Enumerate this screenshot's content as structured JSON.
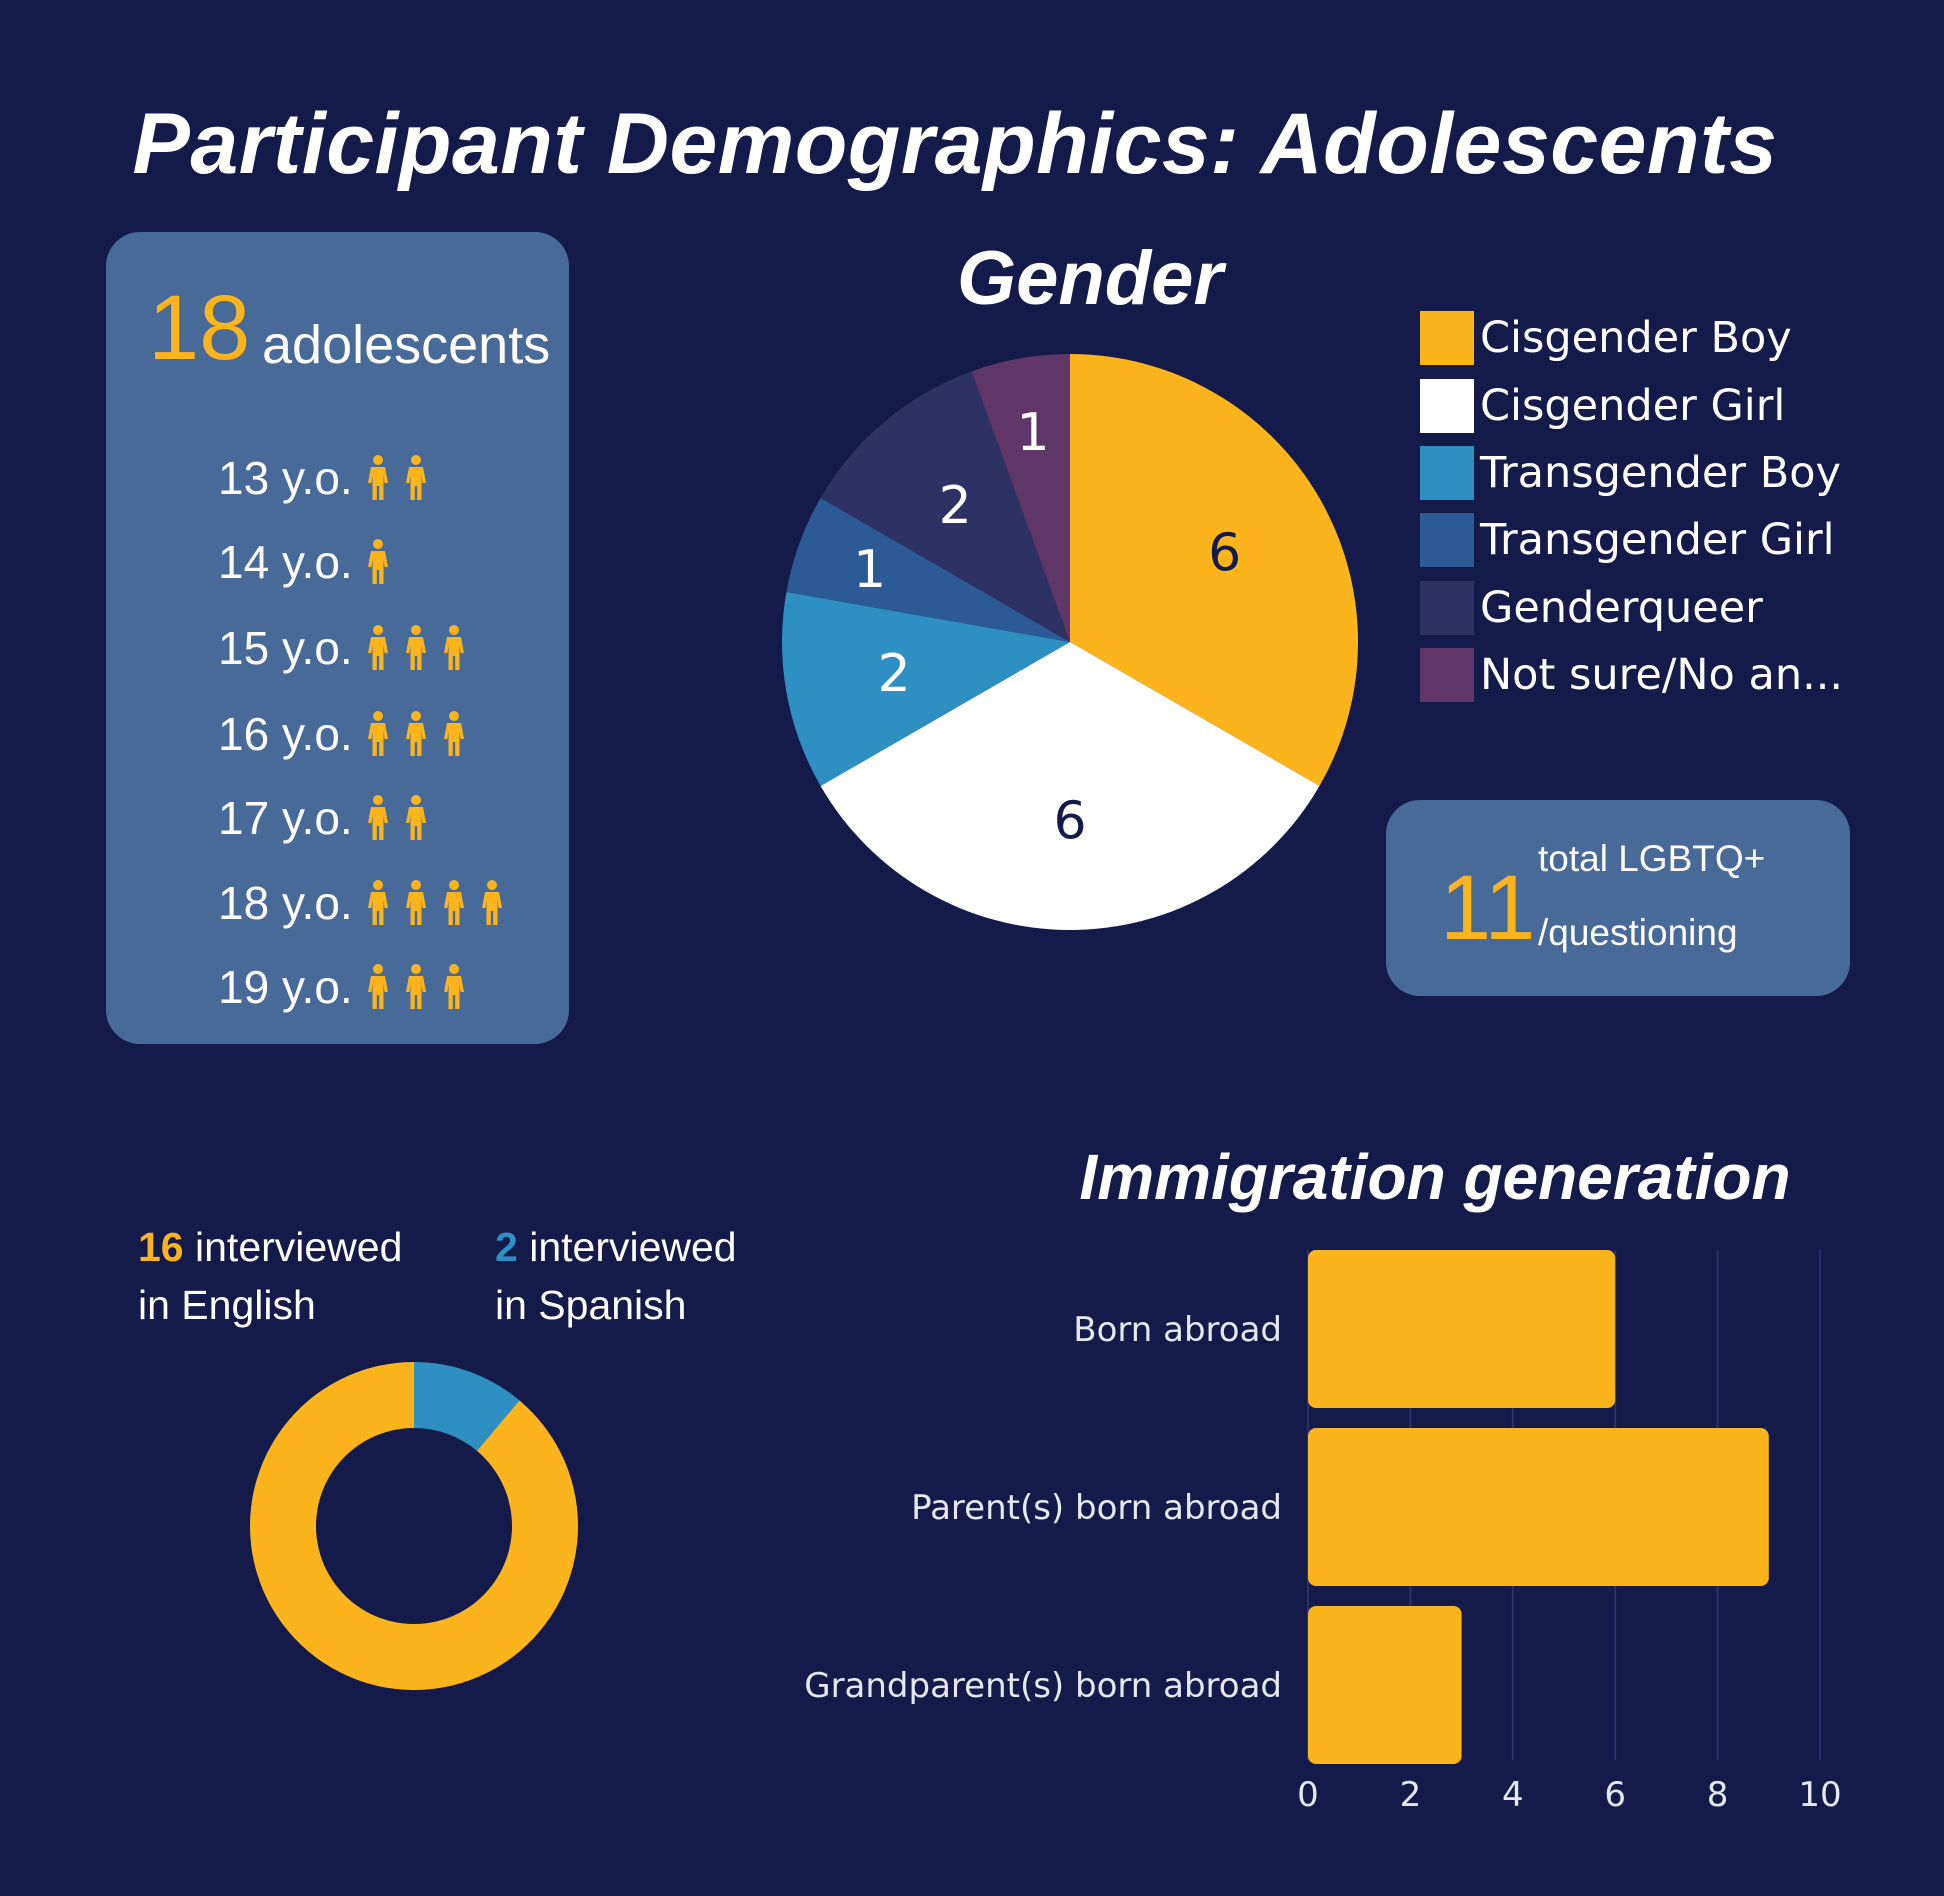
{
  "title": "Participant Demographics: Adolescents",
  "colors": {
    "background": "#141a4a",
    "panel": "#486a98",
    "accent": "#fbb41c",
    "spanish_blue": "#2e8fc2"
  },
  "age_panel": {
    "total_number": "18",
    "total_label": "adolescents",
    "icon": "person-icon",
    "rows": [
      {
        "label": "13 y.o.",
        "count": 2
      },
      {
        "label": "14 y.o.",
        "count": 1
      },
      {
        "label": "15 y.o.",
        "count": 3
      },
      {
        "label": "16 y.o.",
        "count": 3
      },
      {
        "label": "17 y.o.",
        "count": 2
      },
      {
        "label": "18 y.o.",
        "count": 4
      },
      {
        "label": "19 y.o.",
        "count": 3
      }
    ]
  },
  "lgbtq_panel": {
    "number": "11",
    "line1": "total LGBTQ+",
    "line2": "/questioning"
  },
  "language": {
    "english": {
      "count": "16",
      "text1": "interviewed",
      "text2": "in English"
    },
    "spanish": {
      "count": "2",
      "text1": "interviewed",
      "text2": "in Spanish"
    }
  },
  "chart_data": [
    {
      "type": "pie",
      "title": "Gender",
      "legend_position": "right",
      "slices": [
        {
          "label": "Cisgender Boy",
          "value": 6,
          "color": "#fbb41c"
        },
        {
          "label": "Cisgender Girl",
          "value": 6,
          "color": "#ffffff"
        },
        {
          "label": "Transgender Boy",
          "value": 2,
          "color": "#2e8fc2"
        },
        {
          "label": "Transgender Girl",
          "value": 1,
          "color": "#2c5a94"
        },
        {
          "label": "Genderqueer",
          "value": 2,
          "color": "#2e3163"
        },
        {
          "label": "Not sure/No an...",
          "value": 1,
          "color": "#5e3667"
        }
      ]
    },
    {
      "type": "pie",
      "title": "",
      "slices": [
        {
          "label": "Spanish",
          "value": 2,
          "color": "#2e8fc2"
        },
        {
          "label": "English",
          "value": 16,
          "color": "#fbb41c"
        }
      ]
    },
    {
      "type": "bar",
      "orientation": "horizontal",
      "title": "Immigration generation",
      "categories": [
        "Born abroad",
        "Parent(s) born abroad",
        "Grandparent(s) born abroad"
      ],
      "values": [
        6,
        9,
        3
      ],
      "xlim": [
        0,
        10
      ],
      "xticks": [
        "0",
        "2",
        "4",
        "6",
        "8",
        "10"
      ],
      "grid": true,
      "color": "#fbb41c"
    }
  ]
}
